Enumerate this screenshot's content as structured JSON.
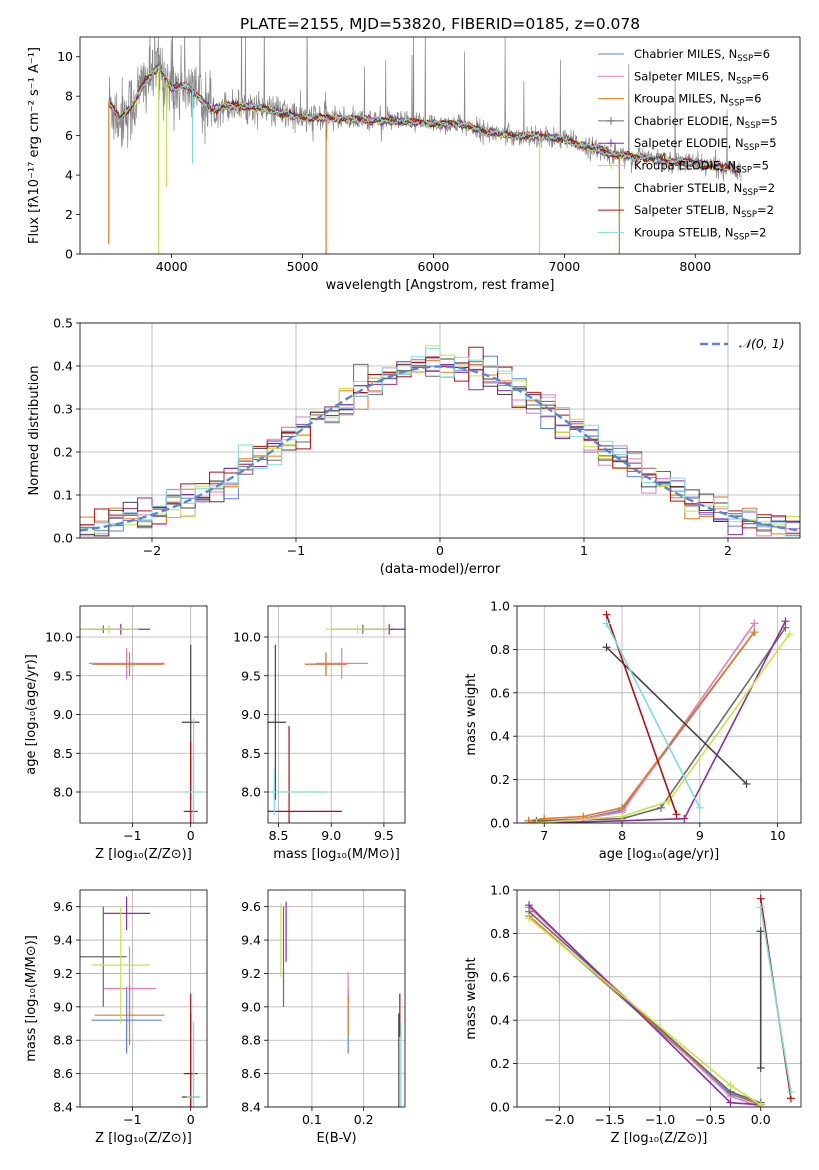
{
  "colors": {
    "chabrier_miles": "#5b84d8",
    "salpeter_miles": "#e37fb8",
    "kroupa_miles": "#e6791b",
    "chabrier_elodie": "#6a6a6a",
    "salpeter_elodie": "#8a2ea0",
    "kroupa_elodie": "#c6e34a",
    "chabrier_stelib": "#454545",
    "salpeter_stelib": "#b01010",
    "kroupa_stelib": "#7fdbe0",
    "data_spectrum": "#888888",
    "normal_curve": "#5b84d8",
    "grid": "#b0b0b0"
  },
  "chart_data": [
    {
      "id": "spectrum",
      "type": "line",
      "title": "PLATE=2155, MJD=53820, FIBERID=0185, z=0.078",
      "xlabel": "wavelength [Angstrom, rest frame]",
      "ylabel": "Flux [fλ10⁻¹⁷ erg cm⁻² s⁻¹ A⁻¹]",
      "xlim": [
        3300,
        8800
      ],
      "ylim": [
        0,
        11
      ],
      "xticks": [
        4000,
        5000,
        6000,
        7000,
        8000
      ],
      "yticks": [
        0,
        2,
        4,
        6,
        8,
        10
      ],
      "grid": false,
      "legend_position": "top-right",
      "legend": [
        {
          "label": "Chabrier MILES, N",
          "sub": "SSP",
          "eq": "=6",
          "color": "#5b84d8",
          "marker": false
        },
        {
          "label": "Salpeter MILES, N",
          "sub": "SSP",
          "eq": "=6",
          "color": "#e37fb8",
          "marker": false
        },
        {
          "label": "Kroupa MILES, N",
          "sub": "SSP",
          "eq": "=6",
          "color": "#e6791b",
          "marker": false
        },
        {
          "label": "Chabrier ELODIE, N",
          "sub": "SSP",
          "eq": "=5",
          "color": "#6a6a6a",
          "marker": true
        },
        {
          "label": "Salpeter ELODIE, N",
          "sub": "SSP",
          "eq": "=5",
          "color": "#8a2ea0",
          "marker": true
        },
        {
          "label": "Kroupa ELODIE, N",
          "sub": "SSP",
          "eq": "=5",
          "color": "#c6e34a",
          "marker": true
        },
        {
          "label": "Chabrier STELIB, N",
          "sub": "SSP",
          "eq": "=2",
          "color": "#454545",
          "marker": false
        },
        {
          "label": "Salpeter STELIB, N",
          "sub": "SSP",
          "eq": "=2",
          "color": "#b01010",
          "marker": false
        },
        {
          "label": "Kroupa STELIB, N",
          "sub": "SSP",
          "eq": "=2",
          "color": "#7fdbe0",
          "marker": false
        }
      ],
      "model_continuum": {
        "x": [
          3520,
          3600,
          3700,
          3800,
          3900,
          4000,
          4100,
          4200,
          4300,
          4400,
          4600,
          4800,
          5000,
          5200,
          5500,
          5800,
          6000,
          6200,
          6400,
          6600,
          6800,
          7000,
          7200,
          7400,
          7600,
          7800,
          8000,
          8200,
          8350
        ],
        "y": [
          7.7,
          6.9,
          7.5,
          8.8,
          9.5,
          8.4,
          8.6,
          8.0,
          7.3,
          7.5,
          7.5,
          7.2,
          6.9,
          6.9,
          6.8,
          6.7,
          6.6,
          6.6,
          6.2,
          6.0,
          6.0,
          5.8,
          5.4,
          5.0,
          4.9,
          4.7,
          4.6,
          4.4,
          4.3
        ]
      },
      "model_dips": [
        {
          "x": 3520,
          "y": 0.5,
          "color": "#e6791b"
        },
        {
          "x": 3900,
          "y": 0.0,
          "color": "#c6e34a"
        },
        {
          "x": 3960,
          "y": 3.4,
          "color": "#c6e34a"
        },
        {
          "x": 4160,
          "y": 4.6,
          "color": "#7fdbe0"
        },
        {
          "x": 5180,
          "y": 0.0,
          "color": "#e6791b"
        },
        {
          "x": 6810,
          "y": 0.0,
          "color": "#c6e34a"
        },
        {
          "x": 7420,
          "y": 0.0,
          "color": "#e6791b"
        }
      ]
    },
    {
      "id": "residuals",
      "type": "histogram",
      "xlabel": "(data-model)/error",
      "ylabel": "Normed distribution",
      "xlim": [
        -2.5,
        2.5
      ],
      "ylim": [
        0,
        0.5
      ],
      "xticks": [
        -2,
        -1,
        0,
        1,
        2
      ],
      "yticks": [
        0.0,
        0.1,
        0.2,
        0.3,
        0.4,
        0.5
      ],
      "grid": true,
      "legend_position": "top-right",
      "legend": [
        {
          "label": "𝒩(0, 1)",
          "style": "dashed"
        }
      ],
      "bin_width": 0.1,
      "bin_start": -2.5,
      "reference_curve": "normal(0,1)"
    },
    {
      "id": "age_vs_Z",
      "type": "errorbar",
      "xlabel": "Z [log₁₀(Z/Z⊙)]",
      "ylabel": "age  [log₁₀(age/yr)]",
      "xlim": [
        -1.9,
        0.28
      ],
      "ylim": [
        7.6,
        10.4
      ],
      "xticks": [
        -1,
        0
      ],
      "yticks": [
        8.0,
        8.5,
        9.0,
        9.5,
        10.0
      ],
      "grid": true,
      "points": [
        {
          "x": -1.1,
          "y": 9.65,
          "xerr": 0.6,
          "yerr": 0.15,
          "color": "#5b84d8"
        },
        {
          "x": -1.1,
          "y": 9.66,
          "xerr": 0.65,
          "yerr": 0.2,
          "color": "#e37fb8"
        },
        {
          "x": -1.05,
          "y": 9.65,
          "xerr": 0.6,
          "yerr": 0.15,
          "color": "#e6791b"
        },
        {
          "x": -1.5,
          "y": 10.1,
          "xerr": 0.4,
          "yerr": 0.05,
          "color": "#6a6a6a"
        },
        {
          "x": -1.2,
          "y": 10.1,
          "xerr": 0.5,
          "yerr": 0.07,
          "color": "#8a2ea0"
        },
        {
          "x": -1.4,
          "y": 10.1,
          "xerr": 0.5,
          "yerr": 0.05,
          "color": "#c6e34a"
        },
        {
          "x": 0.0,
          "y": 8.9,
          "xerr": 0.15,
          "yerr": 1.0,
          "color": "#454545"
        },
        {
          "x": 0.0,
          "y": 7.75,
          "xerr": 0.12,
          "yerr": 0.9,
          "color": "#b01010"
        },
        {
          "x": 0.05,
          "y": 8.0,
          "xerr": 0.15,
          "yerr": 0.95,
          "color": "#7fdbe0"
        }
      ]
    },
    {
      "id": "age_vs_mass",
      "type": "errorbar",
      "xlabel": "mass [log₁₀(M/M⊙)]",
      "ylabel": "",
      "xlim": [
        8.4,
        9.7
      ],
      "ylim": [
        7.6,
        10.4
      ],
      "xticks": [
        8.5,
        9.0,
        9.5
      ],
      "yticks": [
        8.0,
        8.5,
        9.0,
        9.5,
        10.0
      ],
      "grid": true,
      "points": [
        {
          "x": 8.95,
          "y": 9.65,
          "xerr": 0.2,
          "yerr": 0.15,
          "color": "#5b84d8"
        },
        {
          "x": 9.1,
          "y": 9.66,
          "xerr": 0.25,
          "yerr": 0.2,
          "color": "#e37fb8"
        },
        {
          "x": 8.95,
          "y": 9.65,
          "xerr": 0.2,
          "yerr": 0.15,
          "color": "#e6791b"
        },
        {
          "x": 9.3,
          "y": 10.1,
          "xerr": 0.3,
          "yerr": 0.06,
          "color": "#6a6a6a"
        },
        {
          "x": 9.55,
          "y": 10.1,
          "xerr": 0.25,
          "yerr": 0.07,
          "color": "#8a2ea0"
        },
        {
          "x": 9.25,
          "y": 10.1,
          "xerr": 0.3,
          "yerr": 0.05,
          "color": "#c6e34a"
        },
        {
          "x": 8.47,
          "y": 8.9,
          "xerr": 0.1,
          "yerr": 1.0,
          "color": "#454545"
        },
        {
          "x": 8.6,
          "y": 7.75,
          "xerr": 0.5,
          "yerr": 1.1,
          "color": "#b01010"
        },
        {
          "x": 8.46,
          "y": 8.0,
          "xerr": 0.5,
          "yerr": 0.3,
          "color": "#7fdbe0"
        }
      ]
    },
    {
      "id": "massweight_vs_age",
      "type": "line",
      "xlabel": "age  [log₁₀(age/yr)]",
      "ylabel": "mass weight",
      "xlim": [
        6.65,
        10.3
      ],
      "ylim": [
        0,
        1
      ],
      "xticks": [
        7,
        8,
        9,
        10
      ],
      "yticks": [
        0.0,
        0.2,
        0.4,
        0.6,
        0.8,
        1.0
      ],
      "grid": true,
      "series": [
        {
          "color": "#5b84d8",
          "x": [
            6.8,
            7.0,
            7.5,
            8.0,
            9.7
          ],
          "y": [
            0.01,
            0.01,
            0.02,
            0.06,
            0.88
          ]
        },
        {
          "color": "#e37fb8",
          "x": [
            6.8,
            7.0,
            7.5,
            8.0,
            9.7
          ],
          "y": [
            0.0,
            0.01,
            0.02,
            0.05,
            0.92
          ]
        },
        {
          "color": "#e6791b",
          "x": [
            6.8,
            7.0,
            7.5,
            8.0,
            9.7
          ],
          "y": [
            0.01,
            0.02,
            0.03,
            0.07,
            0.88
          ]
        },
        {
          "color": "#6a6a6a",
          "x": [
            6.9,
            8.0,
            8.5,
            10.1
          ],
          "y": [
            0.01,
            0.02,
            0.07,
            0.9
          ]
        },
        {
          "color": "#8a2ea0",
          "x": [
            6.9,
            8.0,
            8.8,
            10.1
          ],
          "y": [
            0.0,
            0.01,
            0.02,
            0.93
          ]
        },
        {
          "color": "#c6e34a",
          "x": [
            6.9,
            8.0,
            8.6,
            10.15
          ],
          "y": [
            0.0,
            0.03,
            0.1,
            0.87
          ]
        },
        {
          "color": "#454545",
          "x": [
            7.8,
            9.6
          ],
          "y": [
            0.81,
            0.18
          ]
        },
        {
          "color": "#b01010",
          "x": [
            7.8,
            8.7
          ],
          "y": [
            0.96,
            0.04
          ]
        },
        {
          "color": "#7fdbe0",
          "x": [
            7.8,
            9.0
          ],
          "y": [
            0.92,
            0.07
          ]
        }
      ]
    },
    {
      "id": "mass_vs_Z",
      "type": "errorbar",
      "xlabel": "Z [log₁₀(Z/Z⊙)]",
      "ylabel": "mass [log₁₀(M/M⊙)]",
      "xlim": [
        -1.9,
        0.28
      ],
      "ylim": [
        8.4,
        9.7
      ],
      "xticks": [
        -1,
        0
      ],
      "yticks": [
        8.4,
        8.6,
        8.8,
        9.0,
        9.2,
        9.4,
        9.6
      ],
      "grid": true,
      "points": [
        {
          "x": -1.1,
          "y": 8.92,
          "xerr": 0.6,
          "yerr": 0.2,
          "color": "#5b84d8"
        },
        {
          "x": -1.05,
          "y": 9.11,
          "xerr": 0.45,
          "yerr": 0.25,
          "color": "#e37fb8"
        },
        {
          "x": -1.05,
          "y": 8.95,
          "xerr": 0.6,
          "yerr": 0.18,
          "color": "#e6791b"
        },
        {
          "x": -1.5,
          "y": 9.3,
          "xerr": 0.4,
          "yerr": 0.3,
          "color": "#6a6a6a"
        },
        {
          "x": -1.1,
          "y": 9.56,
          "xerr": 0.4,
          "yerr": 0.1,
          "color": "#8a2ea0"
        },
        {
          "x": -1.2,
          "y": 9.25,
          "xerr": 0.5,
          "yerr": 0.35,
          "color": "#c6e34a"
        },
        {
          "x": 0.0,
          "y": 8.46,
          "xerr": 0.15,
          "yerr": 0.5,
          "color": "#454545"
        },
        {
          "x": 0.0,
          "y": 8.6,
          "xerr": 0.12,
          "yerr": 0.48,
          "color": "#b01010"
        },
        {
          "x": 0.05,
          "y": 8.46,
          "xerr": 0.12,
          "yerr": 0.45,
          "color": "#7fdbe0"
        }
      ]
    },
    {
      "id": "mass_vs_EBV",
      "type": "errorbar",
      "xlabel": "E(B-V)",
      "ylabel": "",
      "xlim": [
        0.015,
        0.28
      ],
      "ylim": [
        8.4,
        9.7
      ],
      "xticks": [
        0.1,
        0.2
      ],
      "yticks": [
        8.4,
        8.6,
        8.8,
        9.0,
        9.2,
        9.4,
        9.6
      ],
      "grid": true,
      "points": [
        {
          "x": 0.17,
          "y": 8.92,
          "xerr": 0.0,
          "yerr": 0.2,
          "color": "#5b84d8"
        },
        {
          "x": 0.17,
          "y": 9.11,
          "xerr": 0.0,
          "yerr": 0.1,
          "color": "#e37fb8"
        },
        {
          "x": 0.17,
          "y": 8.95,
          "xerr": 0.0,
          "yerr": 0.12,
          "color": "#e6791b"
        },
        {
          "x": 0.045,
          "y": 9.3,
          "xerr": 0.0,
          "yerr": 0.3,
          "color": "#6a6a6a"
        },
        {
          "x": 0.05,
          "y": 9.45,
          "xerr": 0.0,
          "yerr": 0.18,
          "color": "#8a2ea0"
        },
        {
          "x": 0.04,
          "y": 9.4,
          "xerr": 0.0,
          "yerr": 0.22,
          "color": "#c6e34a"
        },
        {
          "x": 0.268,
          "y": 8.46,
          "xerr": 0.0,
          "yerr": 0.5,
          "color": "#454545"
        },
        {
          "x": 0.27,
          "y": 8.95,
          "xerr": 0.0,
          "yerr": 0.13,
          "color": "#b01010"
        },
        {
          "x": 0.272,
          "y": 8.46,
          "xerr": 0.0,
          "yerr": 0.45,
          "color": "#7fdbe0"
        }
      ]
    },
    {
      "id": "massweight_vs_Z",
      "type": "line",
      "xlabel": "Z [log₁₀(Z/Z⊙)]",
      "ylabel": "mass weight",
      "xlim": [
        -2.42,
        0.4
      ],
      "ylim": [
        0,
        1
      ],
      "xticks": [
        -2.0,
        -1.5,
        -1.0,
        -0.5,
        0.0
      ],
      "yticks": [
        0.0,
        0.2,
        0.4,
        0.6,
        0.8,
        1.0
      ],
      "grid": true,
      "series": [
        {
          "color": "#5b84d8",
          "x": [
            -2.3,
            -0.3,
            0.0
          ],
          "y": [
            0.88,
            0.06,
            0.01
          ]
        },
        {
          "color": "#e37fb8",
          "x": [
            -2.3,
            -0.3,
            0.0
          ],
          "y": [
            0.92,
            0.05,
            0.0
          ]
        },
        {
          "color": "#e6791b",
          "x": [
            -2.3,
            -0.3,
            0.0
          ],
          "y": [
            0.88,
            0.07,
            0.01
          ]
        },
        {
          "color": "#6a6a6a",
          "x": [
            -2.3,
            -0.3,
            0.0
          ],
          "y": [
            0.9,
            0.07,
            0.02
          ]
        },
        {
          "color": "#8a2ea0",
          "x": [
            -2.3,
            -0.3,
            0.0
          ],
          "y": [
            0.93,
            0.02,
            0.01
          ]
        },
        {
          "color": "#c6e34a",
          "x": [
            -2.3,
            -0.3,
            0.0
          ],
          "y": [
            0.87,
            0.1,
            0.01
          ]
        },
        {
          "color": "#454545",
          "x": [
            0.0,
            0.0
          ],
          "y": [
            0.81,
            0.18
          ]
        },
        {
          "color": "#b01010",
          "x": [
            0.0,
            0.3
          ],
          "y": [
            0.96,
            0.04
          ]
        },
        {
          "color": "#7fdbe0",
          "x": [
            0.0,
            0.3
          ],
          "y": [
            0.92,
            0.07
          ]
        }
      ]
    }
  ]
}
